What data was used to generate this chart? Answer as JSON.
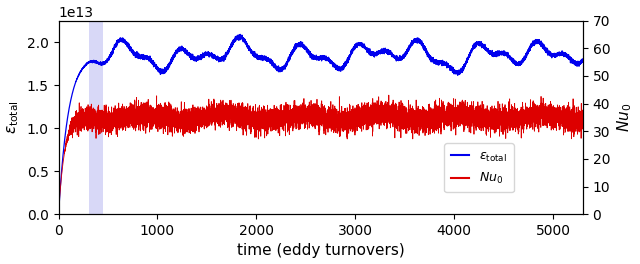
{
  "xlabel": "time (eddy turnovers)",
  "ylabel_left": "$\\varepsilon_\\mathrm{total}$",
  "ylabel_right": "$Nu_0$",
  "x_max": 5300,
  "x_min": 0,
  "ylim_left": [
    0,
    22500000000000.0
  ],
  "ylim_right": [
    0,
    70
  ],
  "yticks_right": [
    0,
    10,
    20,
    30,
    40,
    50,
    60,
    70
  ],
  "blue_color": "#0000ee",
  "red_color": "#dd0000",
  "shaded_xmin": 310,
  "shaded_xmax": 450,
  "shaded_color": "#aaaaee",
  "shaded_alpha": 0.45,
  "figsize": [
    6.4,
    2.64
  ],
  "dpi": 100,
  "seed": 7,
  "blue_mean": 18500000000000.0,
  "blue_noise_std": 120000000000.0,
  "blue_osc_amp": 1000000000000.0,
  "blue_osc_period": 600,
  "blue_osc_amp2": 600000000000.0,
  "blue_osc_period2": 300,
  "nu_mean": 35.0,
  "nu_noise_std": 2.2,
  "t_rise_blue": 280,
  "t_rise_nu": 200
}
